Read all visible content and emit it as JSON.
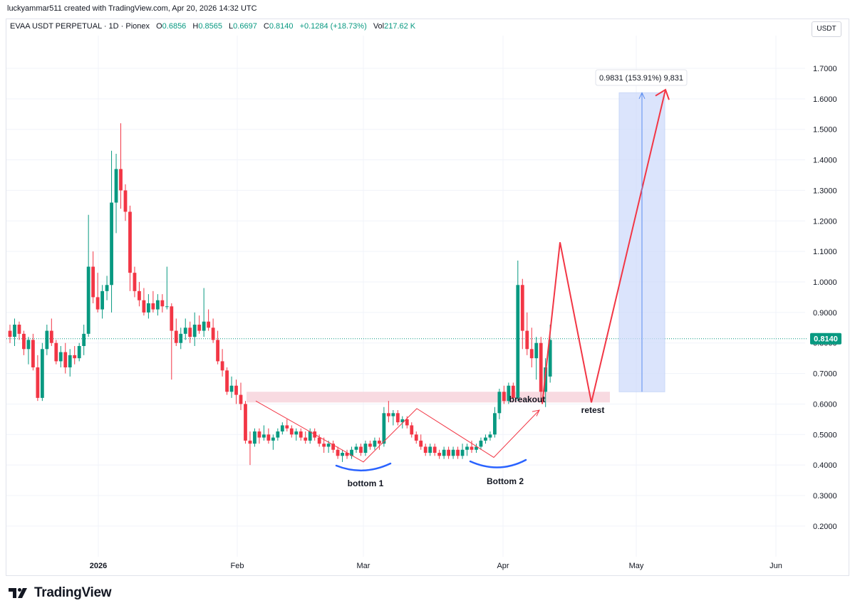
{
  "header": {
    "credit": "luckyammar511 created with TradingView.com, Apr 20, 2026 14:32 UTC"
  },
  "legend": {
    "symbol": "EVAA USDT PERPETUAL · 1D · Pionex",
    "o_label": "O",
    "o": "0.6856",
    "h_label": "H",
    "h": "0.8565",
    "l_label": "L",
    "l": "0.6697",
    "c_label": "C",
    "c": "0.8140",
    "change": "+0.1284 (+18.73%)",
    "vol_label": "Vol",
    "vol": "217.62 K"
  },
  "currency": "USDT",
  "footer": {
    "logo_text": "TradingView"
  },
  "colors": {
    "up": "#089981",
    "down": "#f23645",
    "line": "#f23645",
    "box": "#cfdcfb",
    "zone": "#f7d3dc",
    "arc": "#2962ff"
  },
  "chart_data": {
    "type": "candlestick",
    "y_ticks": [
      "0.2000",
      "0.3000",
      "0.4000",
      "0.5000",
      "0.6000",
      "0.7000",
      "0.8000",
      "0.9000",
      "1.0000",
      "1.1000",
      "1.2000",
      "1.3000",
      "1.4000",
      "1.5000",
      "1.6000",
      "1.7000"
    ],
    "x_labels": [
      "2026",
      "Feb",
      "Mar",
      "Apr",
      "May",
      "Jun"
    ],
    "last_price": "0.8140",
    "candles": [
      [
        0.84,
        0.86,
        0.8,
        0.82
      ],
      [
        0.82,
        0.88,
        0.79,
        0.86
      ],
      [
        0.86,
        0.87,
        0.81,
        0.83
      ],
      [
        0.83,
        0.84,
        0.76,
        0.78
      ],
      [
        0.78,
        0.82,
        0.73,
        0.81
      ],
      [
        0.81,
        0.83,
        0.71,
        0.72
      ],
      [
        0.72,
        0.76,
        0.61,
        0.62
      ],
      [
        0.62,
        0.8,
        0.61,
        0.78
      ],
      [
        0.78,
        0.86,
        0.76,
        0.84
      ],
      [
        0.84,
        0.88,
        0.79,
        0.8
      ],
      [
        0.8,
        0.81,
        0.73,
        0.74
      ],
      [
        0.74,
        0.79,
        0.72,
        0.77
      ],
      [
        0.77,
        0.8,
        0.7,
        0.72
      ],
      [
        0.72,
        0.78,
        0.69,
        0.76
      ],
      [
        0.76,
        0.79,
        0.73,
        0.75
      ],
      [
        0.75,
        0.8,
        0.74,
        0.79
      ],
      [
        0.79,
        0.86,
        0.76,
        0.83
      ],
      [
        0.83,
        1.22,
        0.82,
        1.05
      ],
      [
        1.05,
        1.1,
        0.93,
        0.95
      ],
      [
        0.95,
        1.03,
        0.9,
        0.91
      ],
      [
        0.91,
        0.99,
        0.88,
        0.97
      ],
      [
        0.97,
        1.02,
        0.94,
        0.99
      ],
      [
        0.99,
        1.43,
        0.9,
        1.26
      ],
      [
        1.26,
        1.42,
        1.16,
        1.37
      ],
      [
        1.37,
        1.52,
        1.24,
        1.3
      ],
      [
        1.3,
        1.32,
        1.2,
        1.23
      ],
      [
        1.23,
        1.25,
        0.97,
        1.03
      ],
      [
        1.03,
        1.05,
        0.95,
        0.97
      ],
      [
        0.97,
        1.0,
        0.92,
        0.94
      ],
      [
        0.94,
        0.98,
        0.89,
        0.9
      ],
      [
        0.9,
        0.96,
        0.88,
        0.93
      ],
      [
        0.93,
        0.97,
        0.9,
        0.91
      ],
      [
        0.91,
        0.96,
        0.89,
        0.94
      ],
      [
        0.94,
        0.96,
        0.9,
        0.92
      ],
      [
        0.92,
        1.05,
        0.91,
        0.92
      ],
      [
        0.92,
        0.93,
        0.68,
        0.84
      ],
      [
        0.84,
        0.88,
        0.79,
        0.8
      ],
      [
        0.8,
        0.85,
        0.78,
        0.83
      ],
      [
        0.83,
        0.88,
        0.81,
        0.85
      ],
      [
        0.85,
        0.87,
        0.8,
        0.82
      ],
      [
        0.82,
        0.9,
        0.79,
        0.86
      ],
      [
        0.86,
        0.89,
        0.83,
        0.84
      ],
      [
        0.84,
        0.98,
        0.82,
        0.87
      ],
      [
        0.87,
        0.91,
        0.84,
        0.85
      ],
      [
        0.85,
        0.88,
        0.8,
        0.81
      ],
      [
        0.81,
        0.84,
        0.73,
        0.74
      ],
      [
        0.74,
        0.78,
        0.69,
        0.71
      ],
      [
        0.71,
        0.72,
        0.63,
        0.64
      ],
      [
        0.64,
        0.69,
        0.62,
        0.66
      ],
      [
        0.66,
        0.68,
        0.6,
        0.63
      ],
      [
        0.63,
        0.67,
        0.58,
        0.6
      ],
      [
        0.6,
        0.61,
        0.47,
        0.48
      ],
      [
        0.48,
        0.51,
        0.4,
        0.47
      ],
      [
        0.47,
        0.52,
        0.46,
        0.51
      ],
      [
        0.51,
        0.52,
        0.47,
        0.49
      ],
      [
        0.49,
        0.53,
        0.48,
        0.5
      ],
      [
        0.5,
        0.52,
        0.47,
        0.48
      ],
      [
        0.48,
        0.5,
        0.45,
        0.49
      ],
      [
        0.49,
        0.52,
        0.48,
        0.51
      ],
      [
        0.51,
        0.54,
        0.5,
        0.53
      ],
      [
        0.53,
        0.55,
        0.51,
        0.52
      ],
      [
        0.52,
        0.53,
        0.49,
        0.5
      ],
      [
        0.5,
        0.52,
        0.48,
        0.51
      ],
      [
        0.51,
        0.52,
        0.48,
        0.49
      ],
      [
        0.49,
        0.51,
        0.47,
        0.48
      ],
      [
        0.48,
        0.52,
        0.47,
        0.51
      ],
      [
        0.51,
        0.52,
        0.48,
        0.49
      ],
      [
        0.49,
        0.5,
        0.46,
        0.47
      ],
      [
        0.47,
        0.49,
        0.44,
        0.46
      ],
      [
        0.46,
        0.48,
        0.44,
        0.47
      ],
      [
        0.47,
        0.48,
        0.44,
        0.45
      ],
      [
        0.45,
        0.46,
        0.42,
        0.43
      ],
      [
        0.43,
        0.45,
        0.41,
        0.44
      ],
      [
        0.44,
        0.45,
        0.42,
        0.43
      ],
      [
        0.43,
        0.46,
        0.42,
        0.45
      ],
      [
        0.45,
        0.47,
        0.44,
        0.46
      ],
      [
        0.46,
        0.47,
        0.43,
        0.44
      ],
      [
        0.44,
        0.48,
        0.43,
        0.47
      ],
      [
        0.47,
        0.48,
        0.45,
        0.46
      ],
      [
        0.46,
        0.49,
        0.45,
        0.48
      ],
      [
        0.48,
        0.49,
        0.45,
        0.47
      ],
      [
        0.47,
        0.59,
        0.46,
        0.57
      ],
      [
        0.57,
        0.61,
        0.54,
        0.56
      ],
      [
        0.56,
        0.58,
        0.53,
        0.57
      ],
      [
        0.57,
        0.58,
        0.53,
        0.54
      ],
      [
        0.54,
        0.56,
        0.52,
        0.55
      ],
      [
        0.55,
        0.56,
        0.52,
        0.53
      ],
      [
        0.53,
        0.54,
        0.49,
        0.5
      ],
      [
        0.5,
        0.51,
        0.47,
        0.48
      ],
      [
        0.48,
        0.5,
        0.45,
        0.46
      ],
      [
        0.46,
        0.47,
        0.43,
        0.44
      ],
      [
        0.44,
        0.47,
        0.43,
        0.46
      ],
      [
        0.46,
        0.47,
        0.43,
        0.44
      ],
      [
        0.44,
        0.45,
        0.42,
        0.43
      ],
      [
        0.43,
        0.46,
        0.42,
        0.45
      ],
      [
        0.45,
        0.46,
        0.42,
        0.43
      ],
      [
        0.43,
        0.46,
        0.42,
        0.45
      ],
      [
        0.45,
        0.46,
        0.42,
        0.43
      ],
      [
        0.43,
        0.47,
        0.42,
        0.45
      ],
      [
        0.45,
        0.47,
        0.43,
        0.46
      ],
      [
        0.46,
        0.48,
        0.44,
        0.45
      ],
      [
        0.45,
        0.47,
        0.44,
        0.46
      ],
      [
        0.46,
        0.49,
        0.45,
        0.48
      ],
      [
        0.48,
        0.5,
        0.47,
        0.49
      ],
      [
        0.49,
        0.51,
        0.48,
        0.5
      ],
      [
        0.5,
        0.59,
        0.49,
        0.57
      ],
      [
        0.57,
        0.65,
        0.55,
        0.64
      ],
      [
        0.64,
        0.66,
        0.6,
        0.61
      ],
      [
        0.61,
        0.67,
        0.6,
        0.66
      ],
      [
        0.66,
        0.67,
        0.61,
        0.62
      ],
      [
        0.62,
        1.07,
        0.61,
        0.99
      ],
      [
        0.99,
        1.01,
        0.78,
        0.84
      ],
      [
        0.84,
        0.9,
        0.76,
        0.78
      ],
      [
        0.78,
        0.85,
        0.72,
        0.75
      ],
      [
        0.75,
        0.82,
        0.68,
        0.8
      ],
      [
        0.8,
        0.82,
        0.61,
        0.64
      ],
      [
        0.64,
        0.75,
        0.59,
        0.72
      ],
      [
        0.69,
        0.86,
        0.67,
        0.81
      ]
    ],
    "annotations": {
      "bottom1": "bottom 1",
      "bottom2": "Bottom 2",
      "breakout": "breakout",
      "retest": "retest",
      "target": "0.9831 (153.91%) 9,831"
    }
  }
}
